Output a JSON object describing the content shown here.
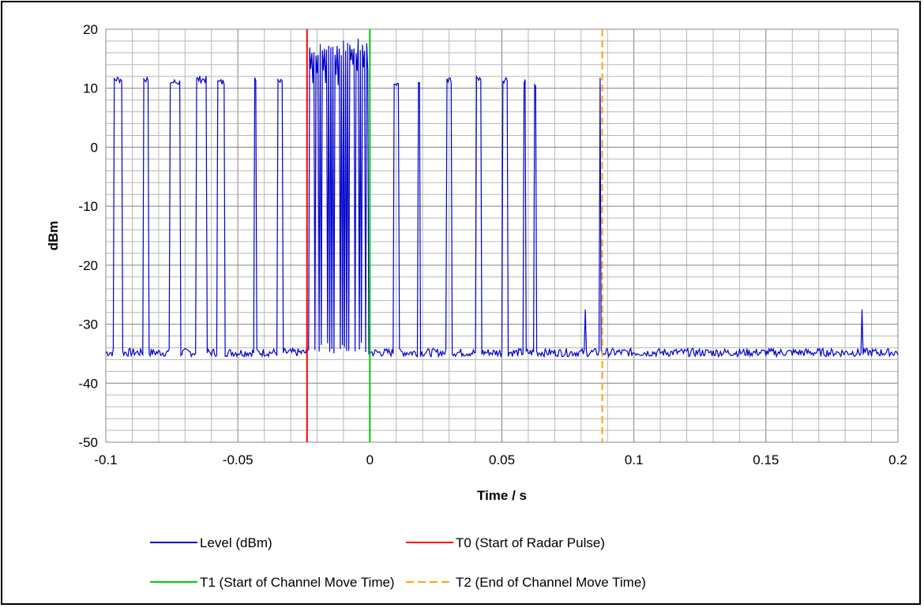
{
  "chart_data": {
    "type": "line",
    "title": "",
    "xlabel": "Time / s",
    "ylabel": "dBm",
    "xlim": [
      -0.1,
      0.2
    ],
    "ylim": [
      -50,
      20
    ],
    "x_ticks": [
      "-0.1",
      "-0.05",
      "0",
      "0.05",
      "0.1",
      "0.15",
      "0.2"
    ],
    "y_ticks": [
      "20",
      "10",
      "0",
      "-10",
      "-20",
      "-30",
      "-40",
      "-50"
    ],
    "grid": true,
    "legend_position": "bottom",
    "series": [
      {
        "name": "Level (dBm)",
        "color": "#0000cc",
        "style": "solid",
        "pulses": [
          {
            "start": -0.097,
            "end": -0.094,
            "level": 11.5
          },
          {
            "start": -0.086,
            "end": -0.084,
            "level": 11.5
          },
          {
            "start": -0.076,
            "end": -0.072,
            "level": 11.0
          },
          {
            "start": -0.066,
            "end": -0.062,
            "level": 11.5
          },
          {
            "start": -0.058,
            "end": -0.055,
            "level": 11.0
          },
          {
            "start": -0.044,
            "end": -0.043,
            "level": 11.5
          },
          {
            "start": -0.035,
            "end": -0.033,
            "level": 11.0
          },
          {
            "start": 0.009,
            "end": 0.011,
            "level": 11.0
          },
          {
            "start": 0.018,
            "end": 0.019,
            "level": 11.0
          },
          {
            "start": 0.029,
            "end": 0.031,
            "level": 11.5
          },
          {
            "start": 0.04,
            "end": 0.042,
            "level": 11.5
          },
          {
            "start": 0.05,
            "end": 0.052,
            "level": 11.5
          },
          {
            "start": 0.058,
            "end": 0.059,
            "level": 11.0
          },
          {
            "start": 0.062,
            "end": 0.063,
            "level": 10.5
          },
          {
            "start": 0.0868,
            "end": 0.0875,
            "level": 12.0
          }
        ],
        "burst": {
          "start": -0.0235,
          "end": -0.0005,
          "high": 17.0,
          "low": -35.0
        },
        "spikes": [
          {
            "x": 0.0815,
            "level": -27.5
          },
          {
            "x": 0.1865,
            "level": -27.5
          }
        ],
        "noise_floor": -34.8
      },
      {
        "name": "T0 (Start of Radar Pulse)",
        "color": "#ff0000",
        "style": "solid",
        "x": -0.0238
      },
      {
        "name": "T1 (Start of Channel Move Time)",
        "color": "#00cc00",
        "style": "solid",
        "x": 0.0
      },
      {
        "name": "T2 (End of Channel Move Time)",
        "color": "#ffa500",
        "style": "dashed",
        "x": 0.088
      }
    ]
  }
}
